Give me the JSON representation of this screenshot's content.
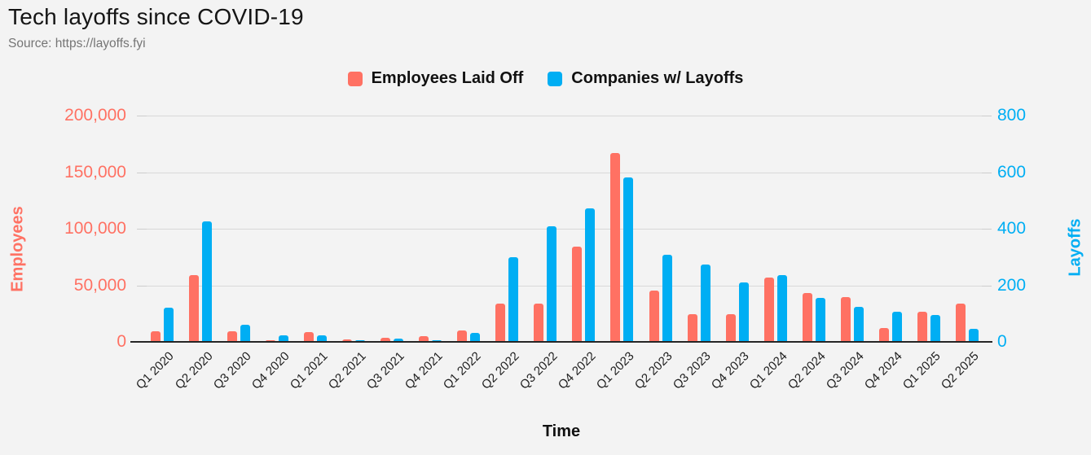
{
  "header": {
    "title": "Tech layoffs since COVID-19",
    "source": "Source: https://layoffs.fyi"
  },
  "chart_data": {
    "type": "bar",
    "title": "Tech layoffs since COVID-19",
    "subtitle": "Source: https://layoffs.fyi",
    "legend_position": "top",
    "grid": true,
    "categories": [
      "Q1 2020",
      "Q2 2020",
      "Q3 2020",
      "Q4 2020",
      "Q1 2021",
      "Q2 2021",
      "Q3 2021",
      "Q4 2021",
      "Q1 2022",
      "Q2 2022",
      "Q3 2022",
      "Q4 2022",
      "Q1 2023",
      "Q2 2023",
      "Q3 2023",
      "Q4 2023",
      "Q1 2024",
      "Q2 2024",
      "Q3 2024",
      "Q4 2024",
      "Q1 2025",
      "Q2 2025"
    ],
    "series": [
      {
        "name": "Employees Laid Off",
        "axis": "left",
        "color": "#FF7163",
        "values": [
          9500,
          59000,
          9600,
          1200,
          8400,
          2400,
          3600,
          4800,
          10000,
          34000,
          34000,
          84000,
          167000,
          45500,
          24500,
          24500,
          57000,
          43000,
          39500,
          12500,
          26500,
          34000
        ]
      },
      {
        "name": "Companies w/ Layoffs",
        "axis": "right",
        "color": "#00AEF3",
        "values": [
          120,
          425,
          60,
          22,
          24,
          5,
          12,
          5,
          33,
          300,
          408,
          472,
          582,
          309,
          273,
          209,
          236,
          155,
          125,
          106,
          94,
          46
        ]
      }
    ],
    "x_axis": {
      "title": "Time"
    },
    "left_axis": {
      "title": "Employees",
      "color": "#FF7163",
      "max": 200000,
      "tick_values": [
        200000,
        150000,
        100000,
        50000,
        0
      ],
      "tick_labels": [
        "200,000",
        "150,000",
        "100,000",
        "50,000",
        "0"
      ]
    },
    "right_axis": {
      "title": "Layoffs",
      "color": "#00AEF3",
      "max": 800,
      "tick_values": [
        800,
        600,
        400,
        200,
        0
      ],
      "tick_labels": [
        "800",
        "600",
        "400",
        "200",
        "0"
      ]
    }
  },
  "colors": {
    "background": "#F3F3F3",
    "gridline": "#D8D8D8",
    "axis_line": "#262626"
  }
}
